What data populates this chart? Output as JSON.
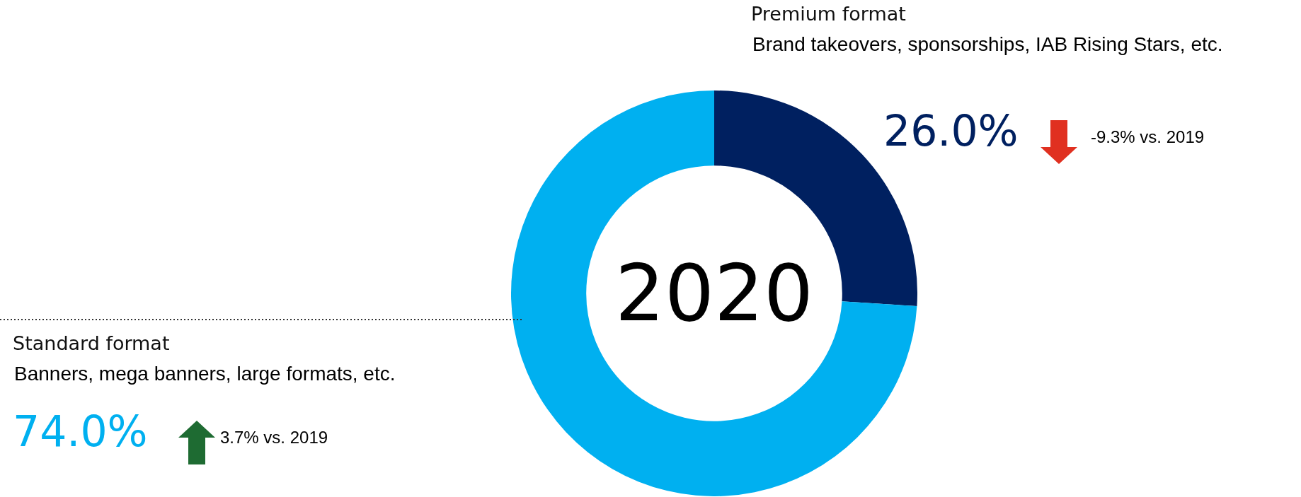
{
  "chart_data": {
    "type": "donut",
    "title": "2020",
    "categories": [
      "Premium format",
      "Standard format"
    ],
    "values": [
      26.0,
      74.0
    ],
    "colors": [
      "#002060",
      "#00b0f0"
    ],
    "value_labels": [
      "26.0%",
      null
    ],
    "annotations": [
      "Brand takeovers, sponsorships, IAB Rising Stars, etc.",
      "Banners, mega banners, large formats, etc.",
      "-9.3% vs. 2019",
      "3.7% vs. 2019",
      null,
      "74.0%"
    ],
    "legend": false
  }
}
